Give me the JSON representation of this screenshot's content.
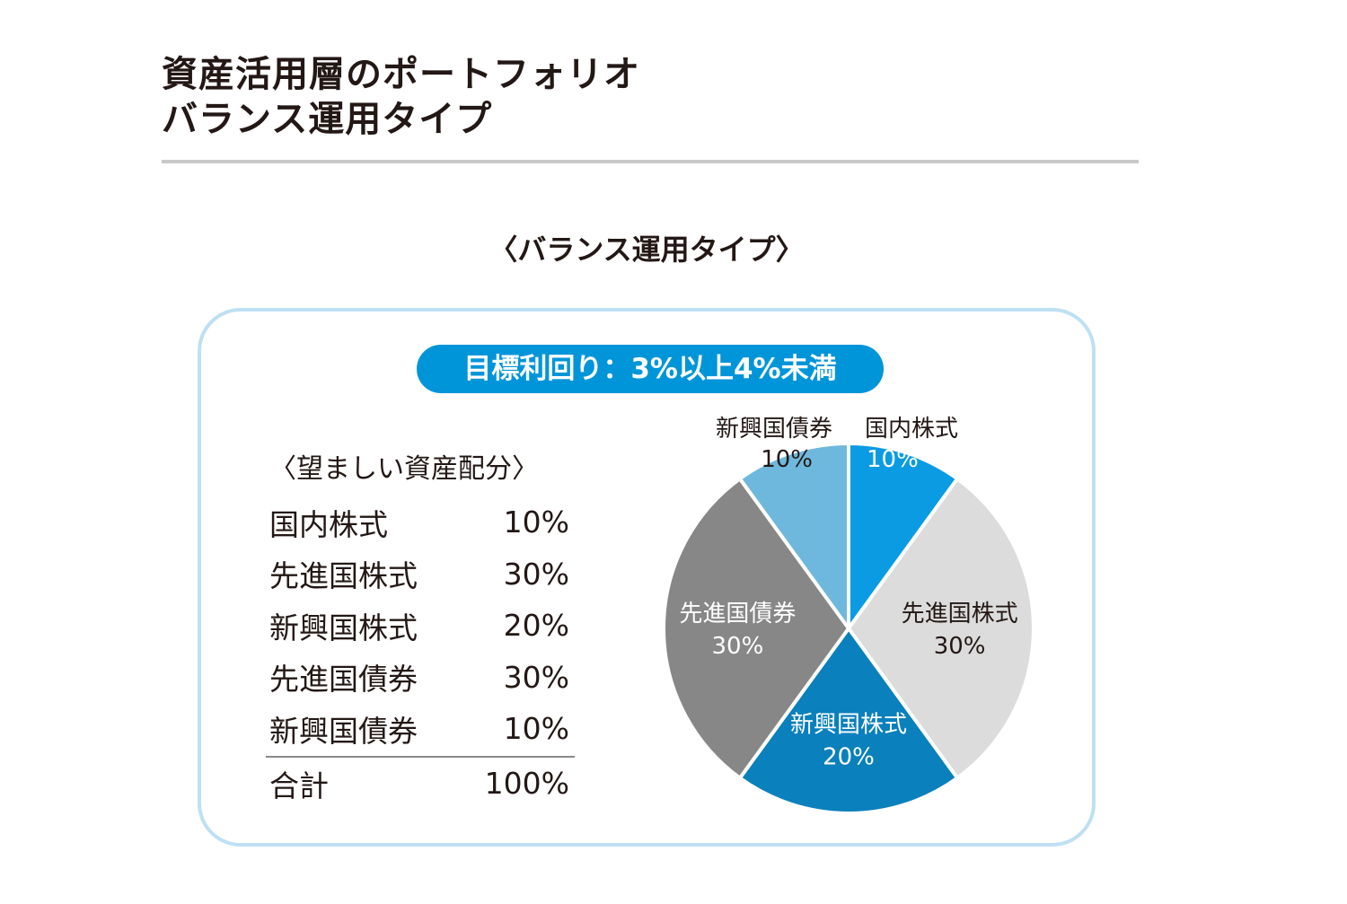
{
  "header": {
    "title_line1": "資産活用層のポートフォリオ",
    "title_line2": "バランス運用タイプ"
  },
  "section_heading": "〈バランス運用タイプ〉",
  "target_return": "目標利回り：3%以上4%未満",
  "allocation": {
    "heading": "〈望ましい資産配分〉",
    "rows": [
      {
        "asset": "国内株式",
        "share": "10%"
      },
      {
        "asset": "先進国株式",
        "share": "30%"
      },
      {
        "asset": "新興国株式",
        "share": "20%"
      },
      {
        "asset": "先進国債券",
        "share": "30%"
      },
      {
        "asset": "新興国債券",
        "share": "10%"
      }
    ],
    "total_label": "合計",
    "total_value": "100%"
  },
  "chart_data": {
    "type": "pie",
    "start_angle_deg": 0,
    "direction": "clockwise",
    "slices": [
      {
        "label": "国内株式",
        "value": 10,
        "display": "10%",
        "color": "#0a9be3",
        "text_color": "#ffffff",
        "outside_label": true
      },
      {
        "label": "先進国株式",
        "value": 30,
        "display": "30%",
        "color": "#dcdcdc",
        "text_color": "#231815",
        "outside_label": false
      },
      {
        "label": "新興国株式",
        "value": 20,
        "display": "20%",
        "color": "#0a80bd",
        "text_color": "#ffffff",
        "outside_label": false
      },
      {
        "label": "先進国債券",
        "value": 30,
        "display": "30%",
        "color": "#878787",
        "text_color": "#ffffff",
        "outside_label": false
      },
      {
        "label": "新興国債券",
        "value": 10,
        "display": "10%",
        "color": "#6fb8dd",
        "text_color": "#231815",
        "outside_label": true
      }
    ],
    "separator_color": "#ffffff"
  }
}
